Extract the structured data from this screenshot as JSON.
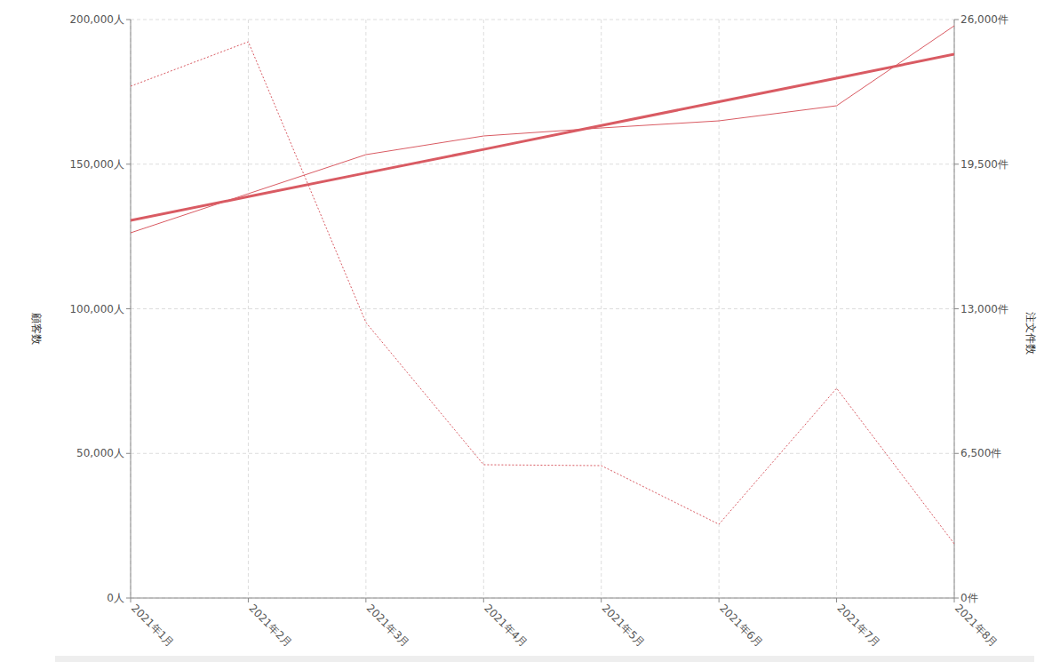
{
  "chart_data": {
    "type": "line",
    "y_label": "顧客数",
    "y2_label": "注文件数",
    "categories": [
      "2021年1月",
      "2021年2月",
      "2021年3月",
      "2021年4月",
      "2021年5月",
      "2021年6月",
      "2021年7月",
      "2021年8月"
    ],
    "ylim": [
      0,
      200000
    ],
    "yticks": [
      {
        "value": 0,
        "label": "0人"
      },
      {
        "value": 50000,
        "label": "50,000人"
      },
      {
        "value": 100000,
        "label": "100,000人"
      },
      {
        "value": 150000,
        "label": "150,000人"
      },
      {
        "value": 200000,
        "label": "200,000人"
      }
    ],
    "y2lim": [
      0,
      26000
    ],
    "y2ticks": [
      {
        "value": 0,
        "label": "0件"
      },
      {
        "value": 6500,
        "label": "6,500件"
      },
      {
        "value": 13000,
        "label": "13,000件"
      },
      {
        "value": 19500,
        "label": "19,500件"
      },
      {
        "value": 26000,
        "label": "26,000件"
      }
    ],
    "grid": true,
    "series": [
      {
        "color": "#d95b63",
        "line_style": "solid",
        "values": [
          130568,
          138771,
          146974,
          155100,
          163380,
          171582,
          179723,
          188018
        ]
      },
      {
        "color": "#d95b63",
        "line_style": "solid",
        "values": [
          126267,
          139785,
          153303,
          159754,
          162519,
          164977,
          170200,
          197849
        ]
      },
      {
        "color": "#d95b63",
        "line_style": "dotted",
        "axis": "y2",
        "values": [
          23004,
          25001,
          12381,
          5991,
          5951,
          3315,
          9426,
          2436
        ]
      }
    ]
  }
}
